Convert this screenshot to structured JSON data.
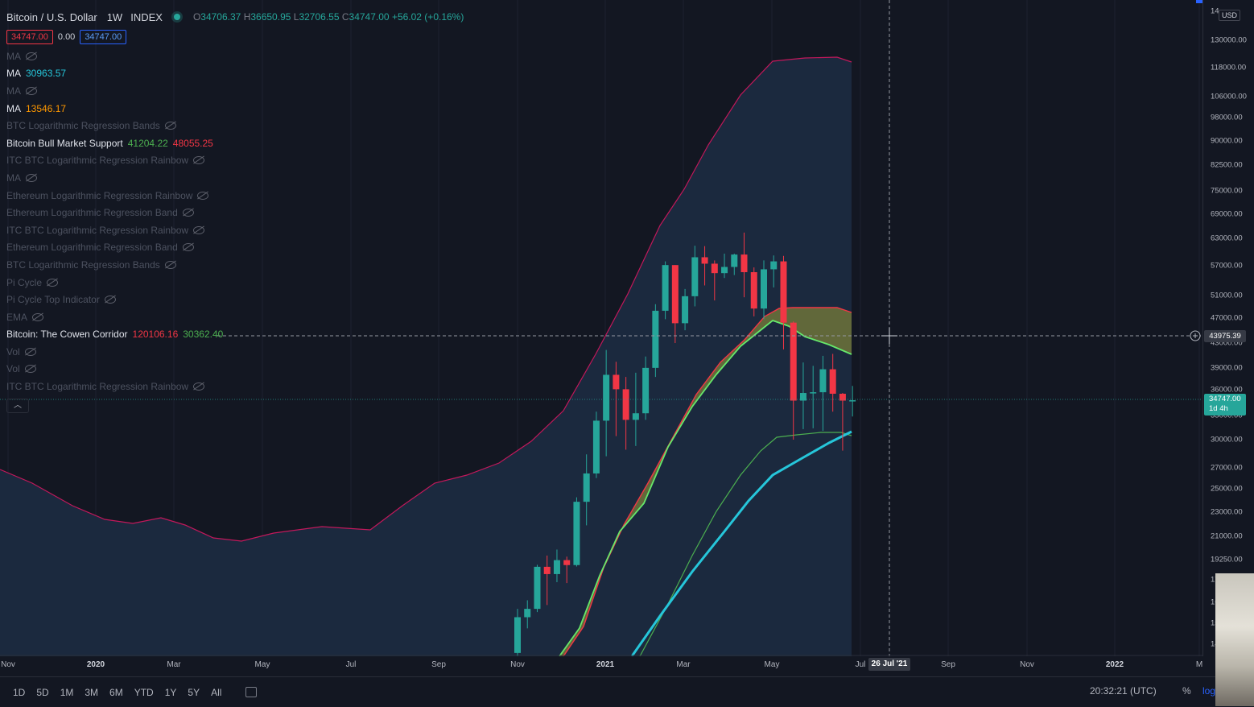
{
  "header": {
    "symbol": "Bitcoin / U.S. Dollar",
    "interval": "1W",
    "exchange": "INDEX",
    "o_label": "O",
    "open": "34706.37",
    "h_label": "H",
    "high": "36650.95",
    "l_label": "L",
    "low": "32706.55",
    "c_label": "C",
    "close": "34747.00",
    "change": "+56.02 (+0.16%)",
    "bid": "34747.00",
    "spread": "0.00",
    "ask": "34747.00"
  },
  "indicators": [
    {
      "name": "MA",
      "active": false,
      "values": []
    },
    {
      "name": "MA",
      "active": true,
      "values": [
        {
          "text": "30963.57",
          "color": "#26c6da"
        }
      ]
    },
    {
      "name": "MA",
      "active": false,
      "values": []
    },
    {
      "name": "MA",
      "active": true,
      "values": [
        {
          "text": "13546.17",
          "color": "#ff9800"
        }
      ]
    },
    {
      "name": "BTC Logarithmic Regression Bands",
      "active": false,
      "values": []
    },
    {
      "name": "Bitcoin Bull Market Support",
      "active": true,
      "values": [
        {
          "text": "41204.22",
          "color": "#4caf50"
        },
        {
          "text": "48055.25",
          "color": "#f23645"
        }
      ]
    },
    {
      "name": "ITC BTC Logarithmic Regression Rainbow",
      "active": false,
      "values": []
    },
    {
      "name": "MA",
      "active": false,
      "values": []
    },
    {
      "name": "Ethereum Logarithmic Regression Rainbow",
      "active": false,
      "values": []
    },
    {
      "name": "Ethereum Logarithmic Regression Band",
      "active": false,
      "values": []
    },
    {
      "name": "ITC BTC Logarithmic Regression Rainbow",
      "active": false,
      "values": []
    },
    {
      "name": "Ethereum Logarithmic Regression Band",
      "active": false,
      "values": []
    },
    {
      "name": "BTC Logarithmic Regression Bands",
      "active": false,
      "values": []
    },
    {
      "name": "Pi Cycle",
      "active": false,
      "values": []
    },
    {
      "name": "Pi Cycle Top Indicator",
      "active": false,
      "values": []
    },
    {
      "name": "EMA",
      "active": false,
      "values": []
    },
    {
      "name": "Bitcoin: The Cowen Corridor",
      "active": true,
      "values": [
        {
          "text": "120106.16",
          "color": "#f23645"
        },
        {
          "text": "30362.40",
          "color": "#4caf50"
        }
      ]
    },
    {
      "name": "Vol",
      "active": false,
      "values": []
    },
    {
      "name": "Vol",
      "active": false,
      "values": []
    },
    {
      "name": "ITC BTC Logarithmic Regression Rainbow",
      "active": false,
      "values": []
    }
  ],
  "price_axis": {
    "currency": "USD",
    "top_partial": "14",
    "labels": [
      "130000.00",
      "118000.00",
      "106000.00",
      "98000.00",
      "90000.00",
      "82500.00",
      "75000.00",
      "69000.00",
      "63000.00",
      "57000.00",
      "51000.00",
      "47000.00",
      "43000.00",
      "39000.00",
      "36000.00",
      "33000.00",
      "30000.00",
      "27000.00",
      "25000.00",
      "23000.00",
      "21000.00",
      "19250.00",
      "17",
      "16",
      "15",
      "14"
    ],
    "last_price": "34747.00",
    "countdown": "1d 4h",
    "crosshair_price": "43975.39"
  },
  "time_axis": {
    "labels": [
      {
        "t": "Nov",
        "bold": false
      },
      {
        "t": "2020",
        "bold": true
      },
      {
        "t": "Mar",
        "bold": false
      },
      {
        "t": "May",
        "bold": false
      },
      {
        "t": "Jul",
        "bold": false
      },
      {
        "t": "Sep",
        "bold": false
      },
      {
        "t": "Nov",
        "bold": false
      },
      {
        "t": "2021",
        "bold": true
      },
      {
        "t": "Mar",
        "bold": false
      },
      {
        "t": "May",
        "bold": false
      },
      {
        "t": "Jul",
        "bold": false
      },
      {
        "t": "Sep",
        "bold": false
      },
      {
        "t": "Nov",
        "bold": false
      },
      {
        "t": "2022",
        "bold": true
      },
      {
        "t": "M",
        "bold": false
      }
    ],
    "crosshair_date": "26 Jul '21"
  },
  "bottom": {
    "ranges": [
      "1D",
      "5D",
      "1M",
      "3M",
      "6M",
      "YTD",
      "1Y",
      "5Y",
      "All"
    ],
    "clock": "20:32:21 (UTC)",
    "percent": "%",
    "log": "log"
  },
  "colors": {
    "up": "#26a69a",
    "down": "#f23645",
    "band_upper": "#c2185b",
    "band_fill": "#1b2a40",
    "ma_cyan": "#26c6da",
    "support_green": "#4caf50",
    "support_red": "#f23645"
  },
  "chart_data": {
    "type": "candlestick",
    "interval": "1W",
    "y_scale": "log",
    "candles": [
      {
        "d": "2020-11-02",
        "o": 13550,
        "h": 15970,
        "l": 13200,
        "c": 15480
      },
      {
        "d": "2020-11-09",
        "o": 15480,
        "h": 16490,
        "l": 14850,
        "c": 15970
      },
      {
        "d": "2020-11-16",
        "o": 15970,
        "h": 18820,
        "l": 15780,
        "c": 18680
      },
      {
        "d": "2020-11-23",
        "o": 18680,
        "h": 19480,
        "l": 16200,
        "c": 18180
      },
      {
        "d": "2020-11-30",
        "o": 18180,
        "h": 19920,
        "l": 17640,
        "c": 19150
      },
      {
        "d": "2020-12-07",
        "o": 19150,
        "h": 19400,
        "l": 17580,
        "c": 18800
      },
      {
        "d": "2020-12-14",
        "o": 18800,
        "h": 24200,
        "l": 18700,
        "c": 23800
      },
      {
        "d": "2020-12-21",
        "o": 23800,
        "h": 28400,
        "l": 21800,
        "c": 26450
      },
      {
        "d": "2020-12-28",
        "o": 26450,
        "h": 33300,
        "l": 26000,
        "c": 32200
      },
      {
        "d": "2021-01-04",
        "o": 32200,
        "h": 41900,
        "l": 28200,
        "c": 38200
      },
      {
        "d": "2021-01-11",
        "o": 38200,
        "h": 40100,
        "l": 30400,
        "c": 36200
      },
      {
        "d": "2021-01-18",
        "o": 36200,
        "h": 37900,
        "l": 28900,
        "c": 32300
      },
      {
        "d": "2021-01-25",
        "o": 32300,
        "h": 38500,
        "l": 29300,
        "c": 33100
      },
      {
        "d": "2021-02-01",
        "o": 33100,
        "h": 40900,
        "l": 32300,
        "c": 39200
      },
      {
        "d": "2021-02-08",
        "o": 39200,
        "h": 49700,
        "l": 37900,
        "c": 48500
      },
      {
        "d": "2021-02-15",
        "o": 48500,
        "h": 58300,
        "l": 47000,
        "c": 57500
      },
      {
        "d": "2021-02-22",
        "o": 57500,
        "h": 57500,
        "l": 43000,
        "c": 46300
      },
      {
        "d": "2021-03-01",
        "o": 46300,
        "h": 52600,
        "l": 45100,
        "c": 51200
      },
      {
        "d": "2021-03-08",
        "o": 51200,
        "h": 61800,
        "l": 49300,
        "c": 59200
      },
      {
        "d": "2021-03-15",
        "o": 59200,
        "h": 61700,
        "l": 53300,
        "c": 57800
      },
      {
        "d": "2021-03-22",
        "o": 57800,
        "h": 58500,
        "l": 50400,
        "c": 55800
      },
      {
        "d": "2021-03-29",
        "o": 55800,
        "h": 60000,
        "l": 54800,
        "c": 57100
      },
      {
        "d": "2021-04-05",
        "o": 57100,
        "h": 60000,
        "l": 55400,
        "c": 59800
      },
      {
        "d": "2021-04-12",
        "o": 59800,
        "h": 64900,
        "l": 51000,
        "c": 56000
      },
      {
        "d": "2021-04-19",
        "o": 56000,
        "h": 57000,
        "l": 47500,
        "c": 48900
      },
      {
        "d": "2021-04-26",
        "o": 48900,
        "h": 58500,
        "l": 47000,
        "c": 56600
      },
      {
        "d": "2021-05-03",
        "o": 56600,
        "h": 59600,
        "l": 52900,
        "c": 58300
      },
      {
        "d": "2021-05-10",
        "o": 58300,
        "h": 59500,
        "l": 42000,
        "c": 46400
      },
      {
        "d": "2021-05-17",
        "o": 46400,
        "h": 46600,
        "l": 30000,
        "c": 34700
      },
      {
        "d": "2021-05-24",
        "o": 34700,
        "h": 40000,
        "l": 31200,
        "c": 35700
      },
      {
        "d": "2021-05-31",
        "o": 35700,
        "h": 39500,
        "l": 31300,
        "c": 35800
      },
      {
        "d": "2021-06-07",
        "o": 35800,
        "h": 41000,
        "l": 31000,
        "c": 39000
      },
      {
        "d": "2021-06-14",
        "o": 39000,
        "h": 41300,
        "l": 33300,
        "c": 35600
      },
      {
        "d": "2021-06-21",
        "o": 35600,
        "h": 35700,
        "l": 28800,
        "c": 34700
      },
      {
        "d": "2021-06-28",
        "o": 34706.37,
        "h": 36650.95,
        "l": 32706.55,
        "c": 34747.0
      }
    ]
  }
}
